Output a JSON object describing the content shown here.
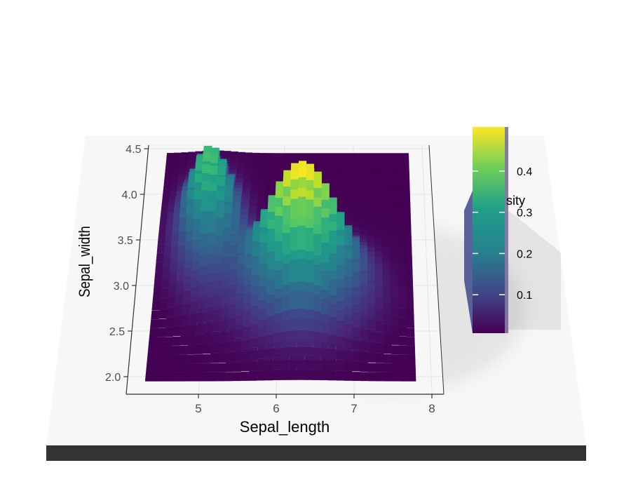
{
  "chart_data": {
    "type": "heatmap",
    "rendering": "3d-extruded",
    "xlabel": "Sepal_length",
    "ylabel": "Sepal_width",
    "x_ticks": [
      5,
      6,
      7,
      8
    ],
    "y_ticks": [
      2.0,
      2.5,
      3.0,
      3.5,
      4.0,
      4.5
    ],
    "x_tick_labels": [
      "5",
      "6",
      "7",
      "8"
    ],
    "y_tick_labels": [
      "2.0",
      "2.5",
      "3.0",
      "3.5",
      "4.0",
      "4.5"
    ],
    "xlim": [
      4.2,
      8.0
    ],
    "ylim": [
      1.9,
      4.5
    ],
    "grid": true,
    "colormap": "viridis",
    "legend": {
      "title": "density",
      "title_visible": "sity",
      "position": "right",
      "ticks": [
        0.1,
        0.2,
        0.3,
        0.4
      ],
      "tick_labels": [
        "0.1",
        "0.2",
        "0.3",
        "0.4"
      ],
      "range": [
        0.0,
        0.5
      ]
    },
    "density_peaks": [
      {
        "x": 5.0,
        "y": 3.45,
        "sx": 0.28,
        "sy": 0.36,
        "density": 0.35
      },
      {
        "x": 6.3,
        "y": 2.9,
        "sx": 0.5,
        "sy": 0.3,
        "density": 0.5
      }
    ],
    "colors": {
      "viridis": [
        "#440154",
        "#482878",
        "#3e4989",
        "#31688e",
        "#26828e",
        "#1f9e89",
        "#35b779",
        "#6ece58",
        "#b5de2b",
        "#fde725"
      ],
      "base_side": "#333333",
      "base_top": "#f7f7f7"
    }
  }
}
